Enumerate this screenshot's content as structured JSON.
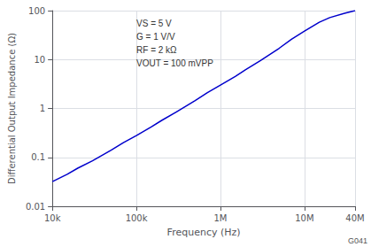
{
  "chart_data": {
    "type": "line",
    "xlabel": "Frequency (Hz)",
    "ylabel": "Differential Output Impedance (Ω)",
    "x": [
      10000,
      15000,
      20000,
      30000,
      50000,
      70000,
      100000,
      150000,
      200000,
      300000,
      500000,
      700000,
      1000000,
      1500000,
      2000000,
      3000000,
      5000000,
      7000000,
      10000000,
      15000000,
      20000000,
      30000000,
      40000000
    ],
    "values": [
      0.032,
      0.045,
      0.06,
      0.085,
      0.14,
      0.2,
      0.28,
      0.42,
      0.57,
      0.85,
      1.45,
      2.1,
      3.0,
      4.5,
      6.2,
      9.5,
      17,
      26,
      38,
      58,
      72,
      88,
      100
    ],
    "color": "#0000cc",
    "xlim": [
      10000,
      40000000
    ],
    "ylim": [
      0.01,
      100
    ],
    "xticks": [
      {
        "value": 10000,
        "label": "10k"
      },
      {
        "value": 100000,
        "label": "100k"
      },
      {
        "value": 1000000,
        "label": "1M"
      },
      {
        "value": 10000000,
        "label": "10M"
      },
      {
        "value": 40000000,
        "label": "40M"
      }
    ],
    "yticks": [
      0.01,
      0.1,
      1,
      10,
      100
    ],
    "log": true,
    "grid": true,
    "annotations": [
      "VS = 5 V",
      "G = 1 V/V",
      "RF = 2 kΩ",
      "VOUT = 100 mVPP"
    ],
    "watermark": "G041"
  }
}
